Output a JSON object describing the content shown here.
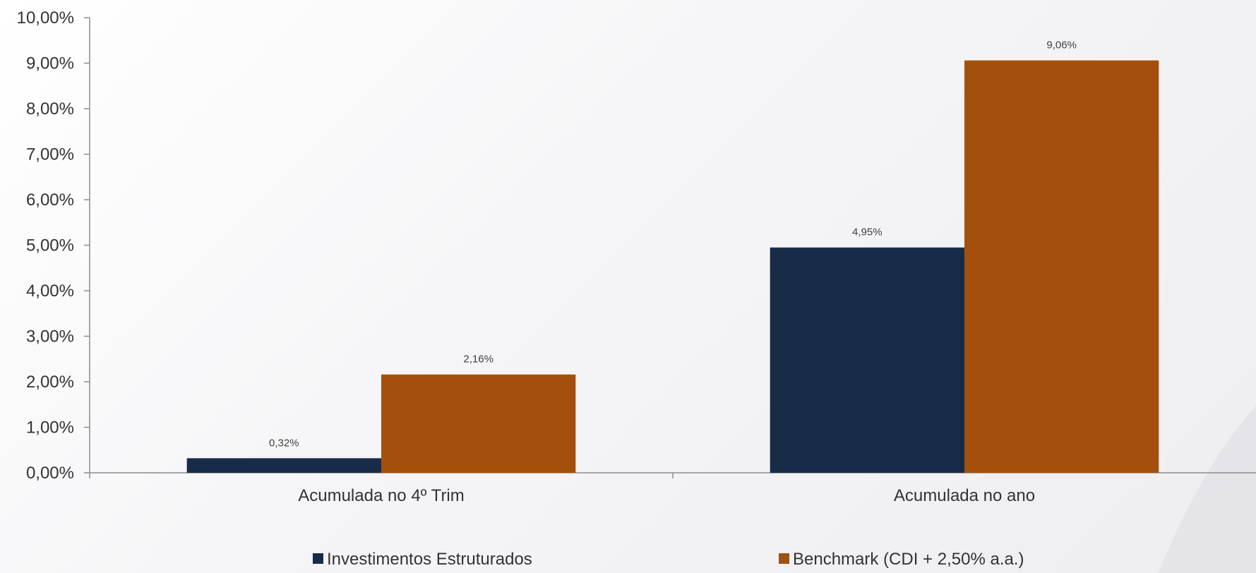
{
  "chart_data": {
    "type": "bar",
    "categories": [
      "Acumulada no 4º Trim",
      "Acumulada no ano"
    ],
    "series": [
      {
        "name": "Investimentos Estruturados",
        "values": [
          0.32,
          4.95
        ],
        "labels": [
          "0,32%",
          "4,95%"
        ],
        "color": "#182c48"
      },
      {
        "name": "Benchmark (CDI + 2,50% a.a.)",
        "values": [
          2.16,
          9.06
        ],
        "labels": [
          "2,16%",
          "9,06%"
        ],
        "color": "#a3500d"
      }
    ],
    "ylim": [
      0,
      10
    ],
    "yticks": [
      0,
      1,
      2,
      3,
      4,
      5,
      6,
      7,
      8,
      9,
      10
    ],
    "ytick_labels": [
      "0,00%",
      "1,00%",
      "2,00%",
      "3,00%",
      "4,00%",
      "5,00%",
      "6,00%",
      "7,00%",
      "8,00%",
      "9,00%",
      "10,00%"
    ],
    "grid": false,
    "legend_position": "bottom"
  }
}
